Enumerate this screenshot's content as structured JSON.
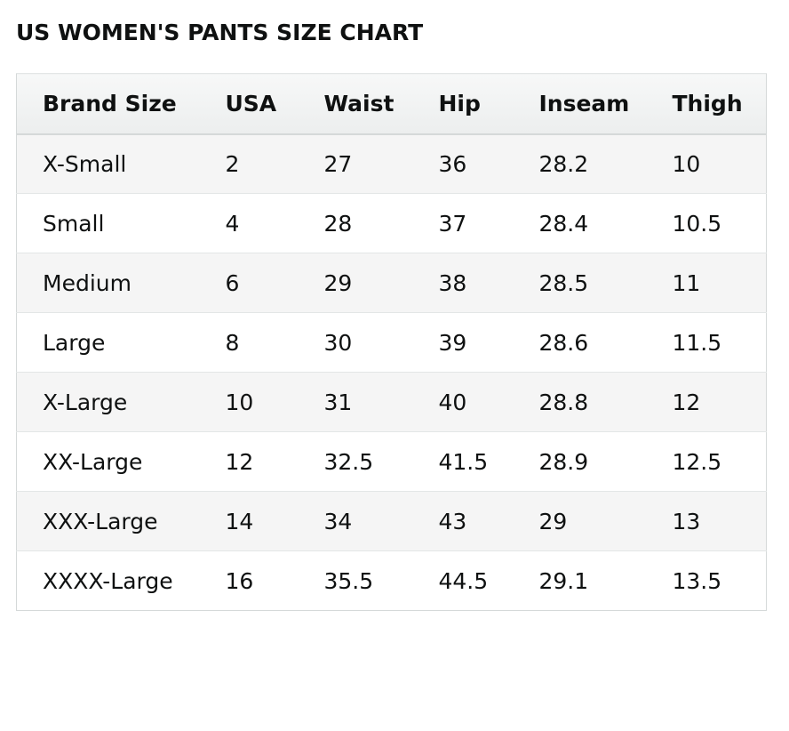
{
  "title": "US WOMEN'S PANTS SIZE CHART",
  "table": {
    "headers": [
      "Brand Size",
      "USA",
      "Waist",
      "Hip",
      "Inseam",
      "Thigh"
    ],
    "rows": [
      [
        "X-Small",
        "2",
        "27",
        "36",
        "28.2",
        "10"
      ],
      [
        "Small",
        "4",
        "28",
        "37",
        "28.4",
        "10.5"
      ],
      [
        "Medium",
        "6",
        "29",
        "38",
        "28.5",
        "11"
      ],
      [
        "Large",
        "8",
        "30",
        "39",
        "28.6",
        "11.5"
      ],
      [
        "X-Large",
        "10",
        "31",
        "40",
        "28.8",
        "12"
      ],
      [
        "XX-Large",
        "12",
        "32.5",
        "41.5",
        "28.9",
        "12.5"
      ],
      [
        "XXX-Large",
        "14",
        "34",
        "43",
        "29",
        "13"
      ],
      [
        "XXXX-Large",
        "16",
        "35.5",
        "44.5",
        "29.1",
        "13.5"
      ]
    ]
  },
  "colors": {
    "text": "#0f1111",
    "header_background": "#eceeee",
    "stripe_background": "#f5f5f5",
    "border": "#d5d9d9"
  }
}
